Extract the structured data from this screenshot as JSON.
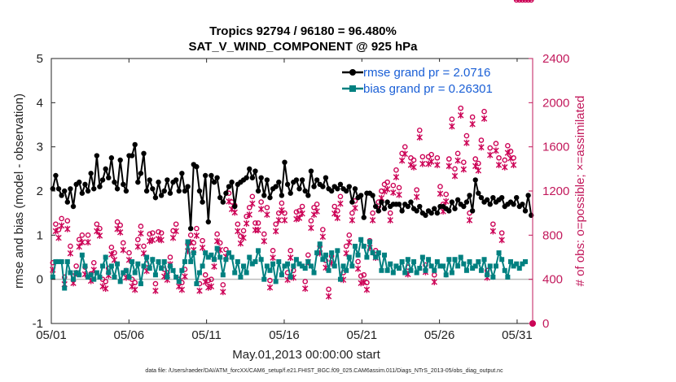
{
  "chart_data": {
    "type": "line",
    "title_line1": "Tropics 92794 / 96180 = 96.480%",
    "title_line2": "SAT_V_WIND_COMPONENT @ 925 hPa",
    "xlabel": "May.01,2013 00:00:00 start",
    "ylabel": "rmse and bias (model - observation)",
    "ylabel_right": "# of obs: o=possible; ×=assimilated",
    "footnote": "data file: /Users/raeder/DAI/ATM_forcXX/CAM6_setup/f.e21.FHIST_BGC.f09_025.CAM6assim.011/Diags_NTrS_2013-05/obs_diag_output.nc",
    "x_ticks": [
      {
        "label": "05/01",
        "day": 0
      },
      {
        "label": "05/06",
        "day": 5
      },
      {
        "label": "05/11",
        "day": 10
      },
      {
        "label": "05/16",
        "day": 15
      },
      {
        "label": "05/21",
        "day": 20
      },
      {
        "label": "05/26",
        "day": 25
      },
      {
        "label": "05/31",
        "day": 30
      }
    ],
    "xlim": [
      0,
      31
    ],
    "ylim": [
      -1,
      5
    ],
    "y_ticks": [
      -1,
      0,
      1,
      2,
      3,
      4,
      5
    ],
    "y2lim": [
      0,
      2400
    ],
    "y2_ticks": [
      0,
      400,
      800,
      1200,
      1600,
      2000,
      2400
    ],
    "legend": {
      "rmse": "rmse grand pr = 2.0716",
      "bias": "bias grand pr = 0.26301"
    },
    "colors": {
      "rmse": "#000000",
      "bias": "#008080",
      "obs": "#cc0055",
      "zero_line": "#bbbbbb"
    },
    "series": [
      {
        "name": "rmse",
        "values": [
          2.05,
          2.35,
          2.05,
          1.9,
          2.0,
          1.75,
          2.05,
          1.65,
          2.15,
          2.2,
          1.95,
          2.15,
          2.0,
          2.4,
          2.05,
          2.8,
          2.1,
          2.25,
          2.5,
          2.3,
          2.75,
          2.2,
          2.05,
          2.7,
          2.15,
          2.0,
          2.8,
          2.8,
          3.05,
          2.2,
          2.4,
          2.85,
          2.0,
          2.25,
          2.05,
          1.85,
          2.2,
          1.9,
          2.0,
          2.25,
          1.95,
          2.2,
          2.25,
          2.0,
          2.4,
          2.0,
          2.1,
          1.15,
          2.6,
          2.55,
          2.0,
          1.75,
          2.35,
          1.3,
          2.35,
          2.2,
          2.3,
          1.85,
          1.75,
          1.95,
          2.1,
          2.2,
          1.65,
          2.15,
          2.2,
          2.25,
          2.3,
          2.5,
          2.3,
          2.45,
          2.0,
          2.3,
          1.9,
          2.25,
          1.85,
          2.05,
          2.1,
          2.2,
          1.9,
          2.65,
          2.15,
          1.95,
          2.2,
          2.25,
          2.05,
          2.25,
          2.0,
          1.9,
          2.45,
          2.1,
          2.25,
          2.15,
          2.1,
          2.3,
          2.05,
          2.0,
          2.1,
          2.05,
          2.15,
          2.05,
          2.0,
          2.1,
          1.75,
          2.05,
          1.85,
          1.9,
          1.4,
          1.95,
          1.95,
          1.9,
          1.65,
          1.55,
          1.75,
          1.6,
          1.75,
          1.65,
          1.7,
          1.7,
          1.7,
          1.55,
          1.7,
          1.65,
          1.75,
          1.6,
          1.55,
          1.65,
          1.5,
          1.45,
          1.55,
          1.5,
          1.6,
          1.5,
          1.65,
          1.65,
          1.6,
          1.55,
          1.75,
          1.6,
          1.8,
          1.7,
          1.65,
          1.75,
          1.9,
          1.55,
          2.25,
          1.95,
          1.85,
          1.75,
          1.8,
          1.7,
          1.85,
          1.75,
          1.8,
          1.85,
          1.65,
          1.7,
          1.75,
          1.7,
          1.85,
          1.65,
          1.7,
          1.55,
          1.9,
          1.45
        ]
      },
      {
        "name": "bias",
        "values": [
          0.05,
          0.4,
          0.4,
          0.4,
          -0.2,
          0.4,
          0.15,
          0.0,
          0.15,
          0.1,
          0.55,
          0.3,
          0.05,
          0.1,
          0.0,
          0.15,
          0.05,
          0.3,
          0.5,
          0.15,
          0.3,
          0.05,
          0.35,
          -0.05,
          0.15,
          0.2,
          0.05,
          0.4,
          0.15,
          0.35,
          -0.1,
          0.3,
          0.5,
          0.25,
          0.45,
          0.1,
          0.4,
          0.25,
          0.4,
          0.05,
          0.3,
          0.2,
          0.05,
          -0.05,
          0.2,
          0.4,
          0.85,
          0.4,
          0.6,
          -0.1,
          0.15,
          0.3,
          0.6,
          0.5,
          0.55,
          0.45,
          0.7,
          0.5,
          0.1,
          0.45,
          0.6,
          0.5,
          0.15,
          0.4,
          0.05,
          0.3,
          0.15,
          0.5,
          0.35,
          0.4,
          0.65,
          0.45,
          0.0,
          0.3,
          0.2,
          0.35,
          -0.05,
          0.4,
          0.1,
          0.3,
          0.35,
          0.05,
          0.3,
          0.45,
          0.35,
          0.3,
          0.25,
          0.4,
          0.3,
          0.15,
          0.6,
          0.8,
          0.45,
          0.55,
          0.2,
          0.6,
          0.3,
          0.65,
          0.0,
          0.3,
          0.2,
          0.5,
          0.3,
          0.75,
          0.55,
          0.9,
          0.75,
          0.5,
          0.85,
          0.6,
          0.5,
          0.6,
          0.2,
          0.55,
          0.2,
          0.35,
          0.15,
          0.3,
          0.25,
          0.4,
          0.15,
          0.45,
          0.2,
          0.4,
          0.15,
          0.25,
          0.5,
          0.2,
          0.45,
          0.3,
          0.2,
          0.4,
          0.3,
          0.3,
          0.1,
          0.45,
          0.15,
          0.45,
          0.3,
          0.5,
          0.35,
          0.2,
          0.4,
          0.25,
          0.3,
          0.4,
          0.2,
          0.45,
          0.1,
          0.3,
          0.05,
          0.3,
          0.6,
          0.45,
          0.2,
          0.05,
          0.4,
          0.3,
          0.35,
          0.25,
          0.35,
          0.4
        ]
      },
      {
        "name": "obs_possible",
        "values": [
          550,
          900,
          850,
          950,
          420,
          930,
          700,
          430,
          520,
          760,
          800,
          510,
          800,
          450,
          550,
          900,
          860,
          400,
          380,
          500,
          690,
          640,
          920,
          890,
          730,
          480,
          640,
          400,
          370,
          760,
          880,
          700,
          540,
          810,
          820,
          360,
          830,
          820,
          490,
          460,
          600,
          840,
          900,
          400,
          370,
          490,
          720,
          800,
          730,
          860,
          360,
          750,
          440,
          390,
          400,
          580,
          810,
          730,
          350,
          670,
          1180,
          1100,
          1070,
          900,
          790,
          840,
          970,
          1050,
          1150,
          910,
          910,
          1100,
          810,
          1050,
          390,
          660,
          900,
          1000,
          1090,
          1000,
          460,
          660,
          480,
          1010,
          1020,
          1060,
          380,
          620,
          930,
          1050,
          1080,
          700,
          850,
          570,
          310,
          610,
          1060,
          1020,
          1150,
          460,
          700,
          800,
          1000,
          1110,
          560,
          430,
          440,
          370,
          750,
          1000,
          660,
          1100,
          1200,
          1260,
          1280,
          1000,
          1250,
          1390,
          1230,
          1540,
          1600,
          510,
          1500,
          1480,
          1210,
          1750,
          1510,
          530,
          1510,
          1530,
          440,
          1500,
          1240,
          1080,
          1170,
          1490,
          1850,
          1400,
          1540,
          1950,
          1460,
          1700,
          1000,
          1870,
          1490,
          1450,
          1660,
          1920,
          480,
          1590,
          900,
          1630,
          1500,
          820,
          1480,
          1610,
          1560,
          1500
        ]
      },
      {
        "name": "obs_assimilated",
        "values": [
          530,
          880,
          820,
          930,
          400,
          900,
          680,
          410,
          500,
          740,
          780,
          490,
          780,
          430,
          530,
          880,
          840,
          380,
          360,
          480,
          670,
          620,
          900,
          870,
          710,
          460,
          620,
          380,
          350,
          740,
          860,
          680,
          520,
          790,
          800,
          340,
          810,
          800,
          470,
          440,
          580,
          820,
          880,
          380,
          350,
          470,
          700,
          780,
          710,
          840,
          340,
          730,
          420,
          370,
          380,
          560,
          790,
          710,
          330,
          650,
          1150,
          1080,
          1050,
          880,
          770,
          820,
          950,
          1030,
          1130,
          890,
          890,
          1080,
          790,
          1030,
          370,
          640,
          880,
          980,
          1070,
          980,
          440,
          640,
          460,
          990,
          1000,
          1040,
          360,
          600,
          910,
          1030,
          1060,
          680,
          830,
          550,
          290,
          590,
          1040,
          1000,
          1130,
          440,
          680,
          780,
          980,
          1090,
          540,
          410,
          420,
          350,
          730,
          980,
          640,
          1080,
          1180,
          1240,
          1260,
          980,
          1230,
          1370,
          1210,
          1520,
          1580,
          490,
          1480,
          1460,
          1190,
          1730,
          1490,
          510,
          1490,
          1510,
          420,
          1480,
          1220,
          1060,
          1150,
          1470,
          1830,
          1380,
          1520,
          1930,
          1440,
          1680,
          980,
          1850,
          1470,
          1430,
          1640,
          1900,
          460,
          1570,
          880,
          1610,
          1480,
          800,
          1460,
          1590,
          1540,
          1480
        ]
      }
    ]
  }
}
